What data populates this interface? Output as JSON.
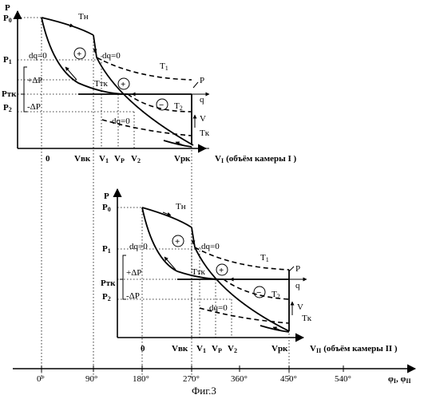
{
  "top": {
    "y_axis": "P",
    "p0": "P",
    "p0_sub": "0",
    "p1": "P",
    "p1_sub": "1",
    "ptk": "Pтк",
    "p2": "P",
    "p2_sub": "2",
    "plus_dp": "+ΔP",
    "minus_dp": "-ΔP",
    "x0": "0",
    "vbk": "Vвк",
    "v1": "V",
    "v1_sub": "1",
    "vp": "V",
    "vp_sub": "P",
    "v2": "V",
    "v2_sub": "2",
    "vpk": "Vрк",
    "x_axis": "V",
    "x_axis_sub": "I",
    "x_axis_note": "(объём камеры I )",
    "tn": "Tн",
    "t1": "T",
    "t1_sub": "1",
    "ttk": "Tтк",
    "t2": "T",
    "t2_sub": "2",
    "tk": "Tк",
    "dq_left": "dq=0",
    "dq_right": "dq=0",
    "dq_lower": "dq=0",
    "p_mark": "P",
    "q_mark": "q",
    "v_mark": "V",
    "plus": "+",
    "minus": "−"
  },
  "bottom": {
    "y_axis": "P",
    "p0": "P",
    "p0_sub": "0",
    "p1": "P",
    "p1_sub": "1",
    "ptk": "Pтк",
    "p2": "P",
    "p2_sub": "2",
    "plus_dp": "+ΔP",
    "minus_dp": "-ΔP",
    "x0": "0",
    "vbk": "Vвк",
    "v1": "V",
    "v1_sub": "1",
    "vp": "V",
    "vp_sub": "P",
    "v2": "V",
    "v2_sub": "2",
    "vpk": "Vрк",
    "x_axis": "V",
    "x_axis_sub": "II",
    "x_axis_note": "(объём камеры II )",
    "tn": "Tн",
    "t1": "T",
    "t1_sub": "1",
    "ttk": "Tтк",
    "t2": "T",
    "t2_sub": "2",
    "tk": "Tк",
    "dq_left": "dq=0",
    "dq_right": "dq=0",
    "dq_lower": "dq=0",
    "p_mark": "P",
    "q_mark": "q",
    "v_mark": "V",
    "plus": "+",
    "minus": "−"
  },
  "phi_axis": {
    "ticks": [
      "0°",
      "90°",
      "180°",
      "270°",
      "360°",
      "450°",
      "540°"
    ],
    "label": "φ",
    "label_sub1": "I",
    "label_sep": ", φ",
    "label_sub2": "II"
  },
  "caption": "Фиг.3"
}
